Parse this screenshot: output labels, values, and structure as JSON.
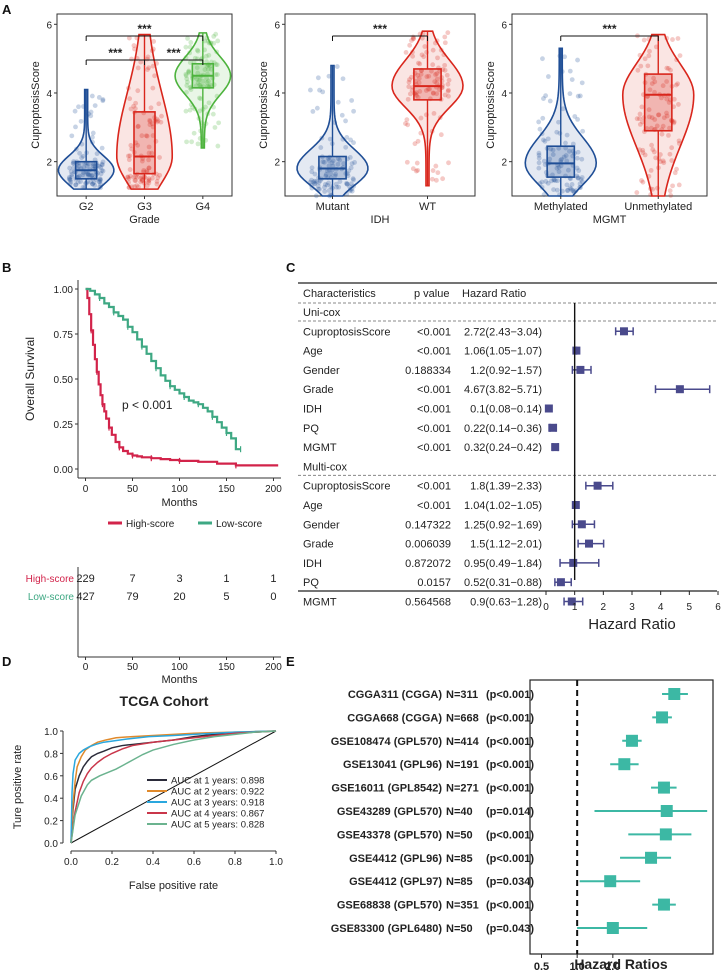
{
  "panel_letters": [
    "A",
    "B",
    "C",
    "D",
    "E"
  ],
  "colors": {
    "blue": "#1f4e96",
    "red": "#d9261c",
    "green": "#4db33d",
    "km_high": "#d2234a",
    "km_low": "#3ea883",
    "forest_c": "#4a4a8c",
    "forest_e": "#3cb8a4",
    "roc": [
      "#2b2b3a",
      "#e08a2c",
      "#2aa7de",
      "#c9364a",
      "#6bb38f"
    ]
  },
  "chart_data": [
    {
      "id": "A1",
      "type": "violin-box",
      "ylabel": "CuproptosisScore",
      "xlabel": "Grade",
      "ylim": [
        1.0,
        6.3
      ],
      "yticks": [
        2,
        4,
        6
      ],
      "groups": [
        {
          "label": "G2",
          "color": "#1f4e96",
          "min": 1.2,
          "q1": 1.5,
          "median": 1.75,
          "q3": 2.0,
          "max": 4.1
        },
        {
          "label": "G3",
          "color": "#d9261c",
          "min": 1.2,
          "q1": 1.65,
          "median": 2.15,
          "q3": 3.45,
          "max": 5.7
        },
        {
          "label": "G4",
          "color": "#4db33d",
          "min": 2.4,
          "q1": 4.15,
          "median": 4.5,
          "q3": 4.85,
          "max": 5.75
        }
      ],
      "comparisons": [
        {
          "pair": [
            "G2",
            "G3"
          ],
          "label": "***"
        },
        {
          "pair": [
            "G3",
            "G4"
          ],
          "label": "***"
        },
        {
          "pair": [
            "G2",
            "G4"
          ],
          "label": "***"
        }
      ]
    },
    {
      "id": "A2",
      "type": "violin-box",
      "ylabel": "CuproptosisScore",
      "xlabel": "IDH",
      "ylim": [
        1.0,
        6.3
      ],
      "yticks": [
        2,
        4,
        6
      ],
      "groups": [
        {
          "label": "Mutant",
          "color": "#1f4e96",
          "min": 1.0,
          "q1": 1.5,
          "median": 1.8,
          "q3": 2.15,
          "max": 4.8
        },
        {
          "label": "WT",
          "color": "#d9261c",
          "min": 1.3,
          "q1": 3.8,
          "median": 4.2,
          "q3": 4.7,
          "max": 5.8
        }
      ],
      "comparisons": [
        {
          "pair": [
            "Mutant",
            "WT"
          ],
          "label": "***"
        }
      ]
    },
    {
      "id": "A3",
      "type": "violin-box",
      "ylabel": "CuproptosisScore",
      "xlabel": "MGMT",
      "ylim": [
        1.0,
        6.3
      ],
      "yticks": [
        2,
        4,
        6
      ],
      "groups": [
        {
          "label": "Methylated",
          "color": "#1f4e96",
          "min": 1.0,
          "q1": 1.55,
          "median": 1.95,
          "q3": 2.45,
          "max": 5.3
        },
        {
          "label": "Unmethylated",
          "color": "#d9261c",
          "min": 1.0,
          "q1": 2.9,
          "median": 3.95,
          "q3": 4.55,
          "max": 5.7
        }
      ],
      "comparisons": [
        {
          "pair": [
            "Methylated",
            "Unmethylated"
          ],
          "label": "***"
        }
      ]
    },
    {
      "id": "B",
      "type": "line",
      "subtype": "kaplan-meier",
      "ylabel": "Overall Survival",
      "xlabel": "Months",
      "xlim": [
        -8,
        208
      ],
      "ylim": [
        -0.05,
        1.05
      ],
      "xticks": [
        0,
        50,
        100,
        150,
        200
      ],
      "yticks": [
        0.0,
        0.25,
        0.5,
        0.75,
        1.0
      ],
      "ytick_labels": [
        "0.00",
        "0.25",
        "0.50",
        "0.75",
        "1.00"
      ],
      "annotation": "p < 0.001",
      "legend": [
        "High-score",
        "Low-score"
      ],
      "series": [
        {
          "name": "High-score",
          "color": "#d2234a",
          "x": [
            0,
            2,
            4,
            6,
            8,
            10,
            12,
            14,
            16,
            18,
            20,
            22,
            25,
            28,
            32,
            36,
            40,
            45,
            50,
            55,
            60,
            70,
            80,
            90,
            100,
            120,
            140,
            160,
            180,
            205
          ],
          "y": [
            1.0,
            0.95,
            0.86,
            0.77,
            0.69,
            0.61,
            0.54,
            0.47,
            0.41,
            0.36,
            0.32,
            0.28,
            0.23,
            0.19,
            0.15,
            0.12,
            0.1,
            0.085,
            0.075,
            0.07,
            0.065,
            0.06,
            0.055,
            0.05,
            0.045,
            0.04,
            0.03,
            0.02,
            0.02,
            0.02
          ]
        },
        {
          "name": "Low-score",
          "color": "#3ea883",
          "x": [
            0,
            5,
            10,
            15,
            20,
            25,
            30,
            35,
            40,
            45,
            50,
            55,
            60,
            65,
            70,
            75,
            80,
            85,
            90,
            95,
            100,
            105,
            110,
            115,
            120,
            125,
            130,
            135,
            140,
            145,
            150,
            155,
            160,
            165
          ],
          "y": [
            1.0,
            0.99,
            0.97,
            0.95,
            0.92,
            0.9,
            0.87,
            0.85,
            0.83,
            0.79,
            0.76,
            0.72,
            0.68,
            0.64,
            0.6,
            0.56,
            0.52,
            0.49,
            0.46,
            0.44,
            0.42,
            0.4,
            0.38,
            0.37,
            0.36,
            0.34,
            0.32,
            0.29,
            0.26,
            0.23,
            0.2,
            0.17,
            0.11,
            0.11
          ]
        }
      ],
      "risk_table": {
        "xlabel": "Months",
        "rows": [
          {
            "name": "High-score",
            "color": "#d2234a",
            "values": [
              "229",
              "7",
              "3",
              "1",
              "1"
            ]
          },
          {
            "name": "Low-score",
            "color": "#3ea883",
            "values": [
              "427",
              "79",
              "20",
              "5",
              "0"
            ]
          }
        ]
      }
    },
    {
      "id": "C",
      "type": "scatter",
      "subtype": "forest",
      "headers": [
        "Characteristics",
        "p value",
        "Hazard Ratio"
      ],
      "xlabel": "Hazard Ratio",
      "xlim": [
        0,
        6
      ],
      "xticks": [
        0,
        1,
        2,
        3,
        4,
        5,
        6
      ],
      "ref_line": 1,
      "sections": [
        {
          "title": "Uni-cox",
          "rows": [
            {
              "name": "CuproptosisScore",
              "p": "<0.001",
              "hr_text": "2.72(2.43−3.04)",
              "hr": 2.72,
              "lo": 2.43,
              "hi": 3.04
            },
            {
              "name": "Age",
              "p": "<0.001",
              "hr_text": "1.06(1.05−1.07)",
              "hr": 1.06,
              "lo": 1.05,
              "hi": 1.07
            },
            {
              "name": "Gender",
              "p": "0.188334",
              "hr_text": "1.2(0.92−1.57)",
              "hr": 1.2,
              "lo": 0.92,
              "hi": 1.57
            },
            {
              "name": "Grade",
              "p": "<0.001",
              "hr_text": "4.67(3.82−5.71)",
              "hr": 4.67,
              "lo": 3.82,
              "hi": 5.71
            },
            {
              "name": "IDH",
              "p": "<0.001",
              "hr_text": "0.1(0.08−0.14)",
              "hr": 0.1,
              "lo": 0.08,
              "hi": 0.14
            },
            {
              "name": "PQ",
              "p": "<0.001",
              "hr_text": "0.22(0.14−0.36)",
              "hr": 0.22,
              "lo": 0.14,
              "hi": 0.36
            },
            {
              "name": "MGMT",
              "p": "<0.001",
              "hr_text": "0.32(0.24−0.42)",
              "hr": 0.32,
              "lo": 0.24,
              "hi": 0.42
            }
          ]
        },
        {
          "title": "Multi-cox",
          "rows": [
            {
              "name": "CuproptosisScore",
              "p": "<0.001",
              "hr_text": "1.8(1.39−2.33)",
              "hr": 1.8,
              "lo": 1.39,
              "hi": 2.33
            },
            {
              "name": "Age",
              "p": "<0.001",
              "hr_text": "1.04(1.02−1.05)",
              "hr": 1.04,
              "lo": 1.02,
              "hi": 1.05
            },
            {
              "name": "Gender",
              "p": "0.147322",
              "hr_text": "1.25(0.92−1.69)",
              "hr": 1.25,
              "lo": 0.92,
              "hi": 1.69
            },
            {
              "name": "Grade",
              "p": "0.006039",
              "hr_text": "1.5(1.12−2.01)",
              "hr": 1.5,
              "lo": 1.12,
              "hi": 2.01
            },
            {
              "name": "IDH",
              "p": "0.872072",
              "hr_text": "0.95(0.49−1.84)",
              "hr": 0.95,
              "lo": 0.49,
              "hi": 1.84
            },
            {
              "name": "PQ",
              "p": "0.0157",
              "hr_text": "0.52(0.31−0.88)",
              "hr": 0.52,
              "lo": 0.31,
              "hi": 0.88
            },
            {
              "name": "MGMT",
              "p": "0.564568",
              "hr_text": "0.9(0.63−1.28)",
              "hr": 0.9,
              "lo": 0.63,
              "hi": 1.28
            }
          ]
        }
      ]
    },
    {
      "id": "D",
      "type": "line",
      "subtype": "roc",
      "title": "TCGA Cohort",
      "xlabel": "False positive rate",
      "ylabel": "Ture positive rate",
      "xlim": [
        0,
        1
      ],
      "ylim": [
        0,
        1
      ],
      "xticks": [
        0.0,
        0.2,
        0.4,
        0.6,
        0.8,
        1.0
      ],
      "yticks": [
        0.0,
        0.2,
        0.4,
        0.6,
        0.8,
        1.0
      ],
      "series": [
        {
          "name": "AUC at 1 years: 0.898",
          "color": "#2b2b3a",
          "x": [
            0,
            0.01,
            0.02,
            0.04,
            0.06,
            0.08,
            0.1,
            0.13,
            0.16,
            0.2,
            0.25,
            0.3,
            0.4,
            0.5,
            0.6,
            0.7,
            0.8,
            0.9,
            1.0
          ],
          "y": [
            0,
            0.3,
            0.48,
            0.6,
            0.68,
            0.73,
            0.77,
            0.8,
            0.82,
            0.85,
            0.87,
            0.88,
            0.9,
            0.92,
            0.95,
            0.97,
            0.98,
            0.99,
            1.0
          ]
        },
        {
          "name": "AUC at 2 years: 0.922",
          "color": "#e08a2c",
          "x": [
            0,
            0.01,
            0.02,
            0.03,
            0.05,
            0.07,
            0.1,
            0.13,
            0.17,
            0.22,
            0.3,
            0.4,
            0.5,
            0.6,
            0.7,
            0.8,
            0.9,
            1.0
          ],
          "y": [
            0,
            0.35,
            0.55,
            0.68,
            0.77,
            0.83,
            0.87,
            0.9,
            0.92,
            0.94,
            0.95,
            0.96,
            0.97,
            0.98,
            0.985,
            0.99,
            0.995,
            1.0
          ]
        },
        {
          "name": "AUC at 3 years: 0.918",
          "color": "#2aa7de",
          "x": [
            0,
            0.005,
            0.01,
            0.02,
            0.04,
            0.06,
            0.09,
            0.12,
            0.16,
            0.2,
            0.28,
            0.38,
            0.5,
            0.6,
            0.7,
            0.8,
            0.9,
            1.0
          ],
          "y": [
            0,
            0.45,
            0.62,
            0.74,
            0.8,
            0.83,
            0.86,
            0.88,
            0.9,
            0.91,
            0.93,
            0.95,
            0.96,
            0.97,
            0.98,
            0.99,
            0.995,
            1.0
          ]
        },
        {
          "name": "AUC at 4 years: 0.867",
          "color": "#c9364a",
          "x": [
            0,
            0.02,
            0.04,
            0.06,
            0.08,
            0.1,
            0.13,
            0.16,
            0.2,
            0.25,
            0.3,
            0.4,
            0.5,
            0.6,
            0.7,
            0.8,
            0.9,
            1.0
          ],
          "y": [
            0,
            0.28,
            0.45,
            0.55,
            0.62,
            0.67,
            0.72,
            0.76,
            0.8,
            0.84,
            0.87,
            0.9,
            0.92,
            0.94,
            0.96,
            0.98,
            0.99,
            1.0
          ]
        },
        {
          "name": "AUC at 5 years: 0.828",
          "color": "#6bb38f",
          "x": [
            0,
            0.02,
            0.05,
            0.08,
            0.1,
            0.14,
            0.18,
            0.22,
            0.26,
            0.3,
            0.35,
            0.4,
            0.5,
            0.6,
            0.7,
            0.8,
            0.9,
            1.0
          ],
          "y": [
            0,
            0.25,
            0.42,
            0.52,
            0.56,
            0.6,
            0.63,
            0.66,
            0.7,
            0.74,
            0.79,
            0.83,
            0.88,
            0.92,
            0.95,
            0.97,
            0.99,
            1.0
          ]
        }
      ],
      "diagonal": true
    },
    {
      "id": "E",
      "type": "scatter",
      "subtype": "forest",
      "xlabel": "Hazard Ratios",
      "xscale": "log2",
      "xlim": [
        0.4,
        14
      ],
      "xticks": [
        0.5,
        1.0,
        2.0
      ],
      "xtick_labels": [
        "0.5",
        "1.0",
        "2.0"
      ],
      "ref_line": 1.0,
      "rows": [
        {
          "label": "CGGA311 (CGGA)",
          "n": "N=311",
          "p": "(p<0.001)",
          "hr": 6.6,
          "lo": 5.2,
          "hi": 8.6
        },
        {
          "label": "CGGA668 (CGGA)",
          "n": "N=668",
          "p": "(p<0.001)",
          "hr": 5.2,
          "lo": 4.3,
          "hi": 6.3
        },
        {
          "label": "GSE108474 (GPL570)",
          "n": "N=414",
          "p": "(p<0.001)",
          "hr": 2.9,
          "lo": 2.4,
          "hi": 3.5
        },
        {
          "label": "GSE13041 (GPL96)",
          "n": "N=191",
          "p": "(p<0.001)",
          "hr": 2.5,
          "lo": 1.9,
          "hi": 3.3
        },
        {
          "label": "GSE16011 (GPL8542)",
          "n": "N=271",
          "p": "(p<0.001)",
          "hr": 5.4,
          "lo": 4.2,
          "hi": 6.9
        },
        {
          "label": "GSE43289 (GPL570)",
          "n": "N=40",
          "p": "(p=0.014)",
          "hr": 5.7,
          "lo": 1.4,
          "hi": 12.5
        },
        {
          "label": "GSE43378 (GPL570)",
          "n": "N=50",
          "p": "(p<0.001)",
          "hr": 5.6,
          "lo": 2.7,
          "hi": 9.2
        },
        {
          "label": "GSE4412 (GPL96)",
          "n": "N=85",
          "p": "(p<0.001)",
          "hr": 4.2,
          "lo": 2.3,
          "hi": 6.2
        },
        {
          "label": "GSE4412 (GPL97)",
          "n": "N=85",
          "p": "(p=0.034)",
          "hr": 1.9,
          "lo": 1.05,
          "hi": 3.4
        },
        {
          "label": "GSE68838 (GPL570)",
          "n": "N=351",
          "p": "(p<0.001)",
          "hr": 5.4,
          "lo": 4.3,
          "hi": 6.8
        },
        {
          "label": "GSE83300 (GPL6480)",
          "n": "N=50",
          "p": "(p=0.043)",
          "hr": 2.0,
          "lo": 1.0,
          "hi": 3.9
        }
      ]
    }
  ]
}
